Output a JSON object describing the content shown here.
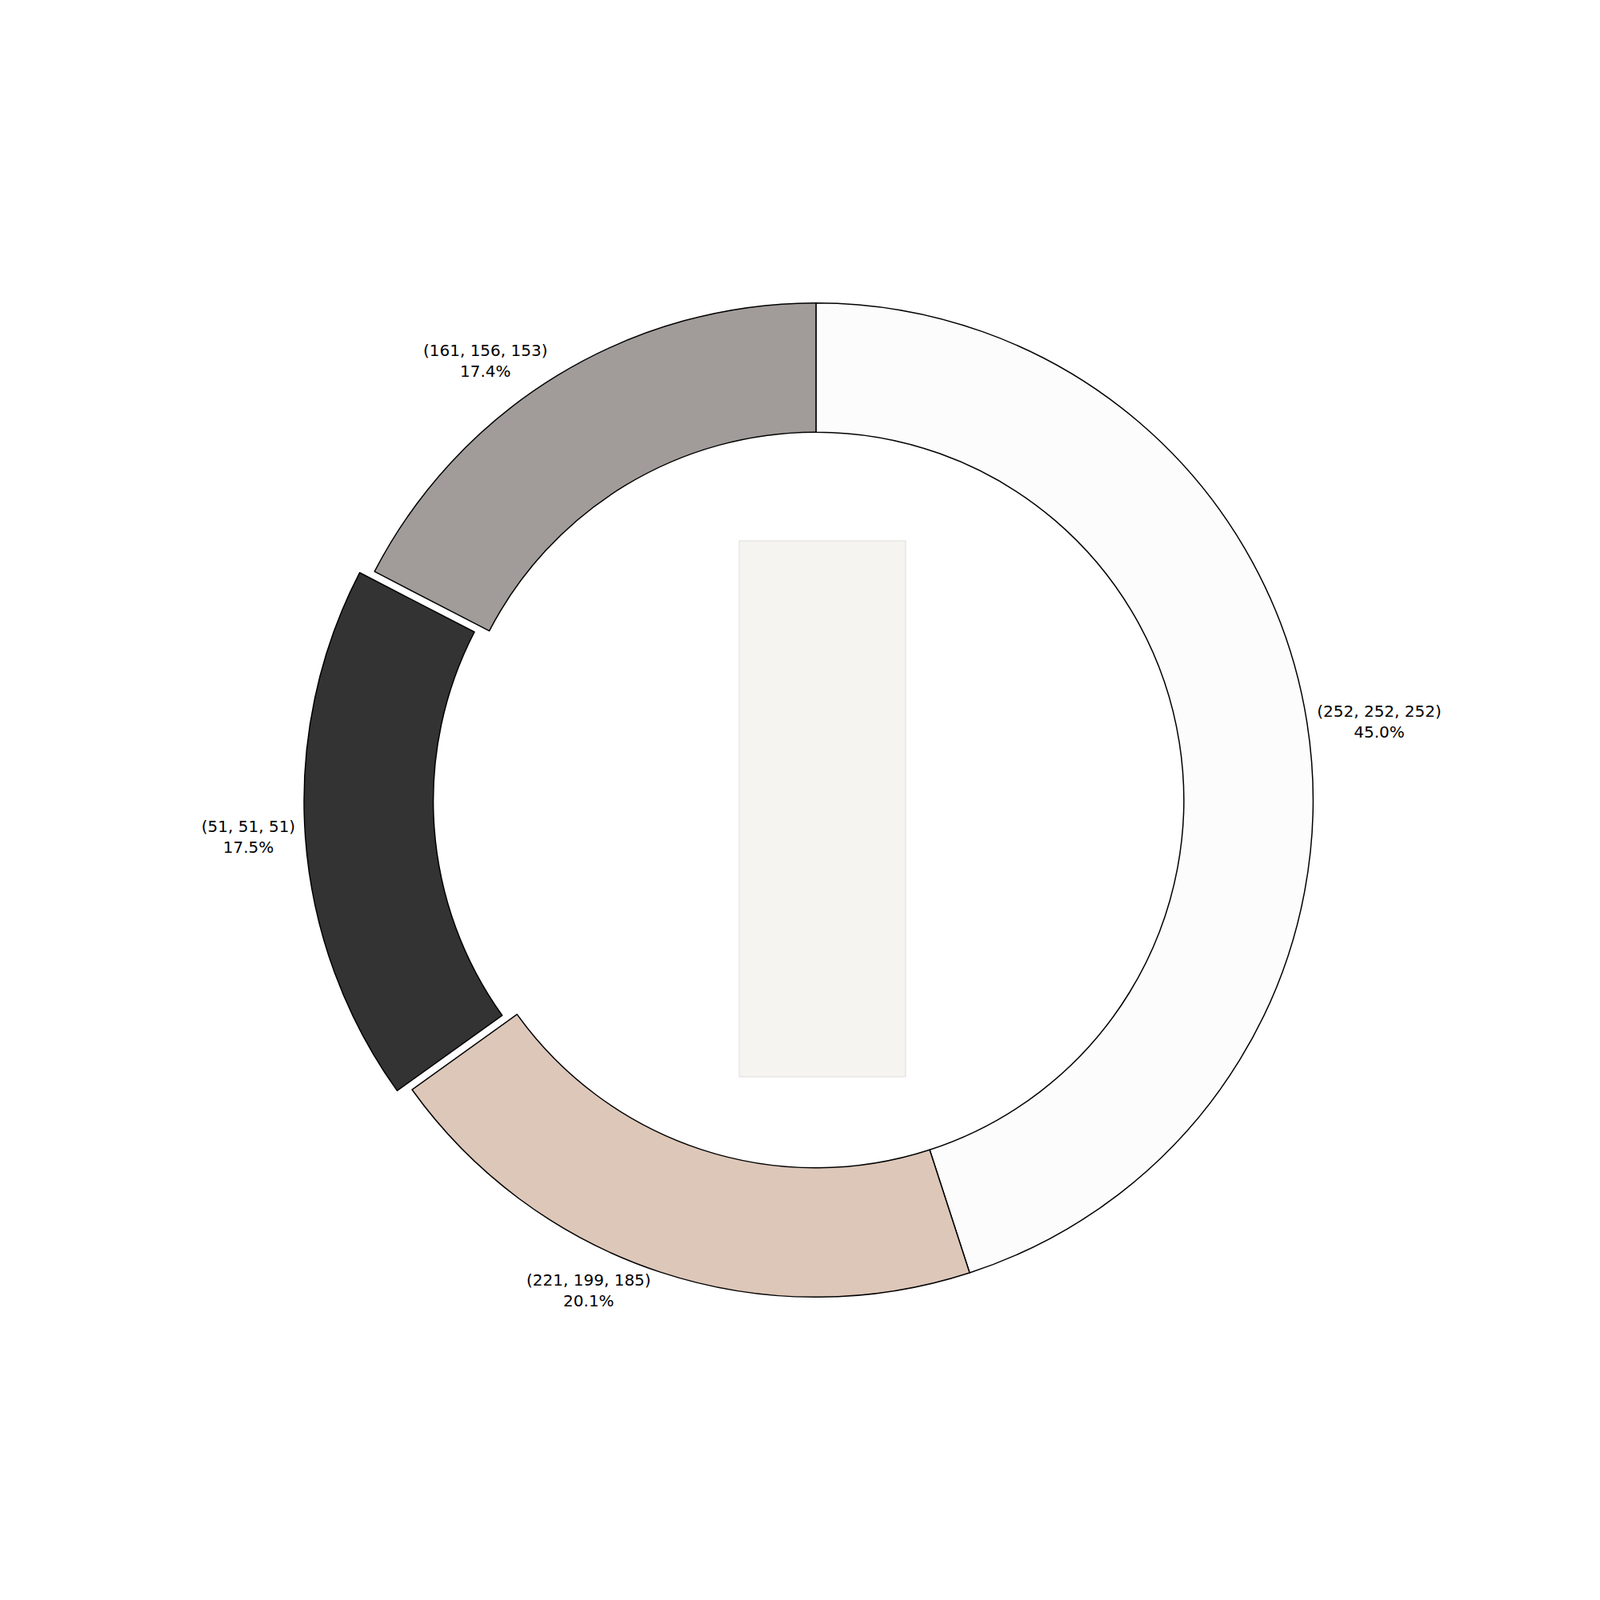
{
  "chart_data": {
    "type": "pie",
    "categories": [
      "(252, 252, 252)",
      "(221, 199, 185)",
      "(51, 51, 51)",
      "(161, 156, 153)"
    ],
    "values": [
      45.0,
      20.1,
      17.5,
      17.4
    ],
    "value_labels": [
      "45.0%",
      "20.1%",
      "17.5%",
      "17.4%"
    ],
    "colors": [
      "rgb(252, 252, 252)",
      "rgb(221, 199, 185)",
      "rgb(51, 51, 51)",
      "rgb(161, 156, 153)"
    ],
    "data_labels": true
  }
}
